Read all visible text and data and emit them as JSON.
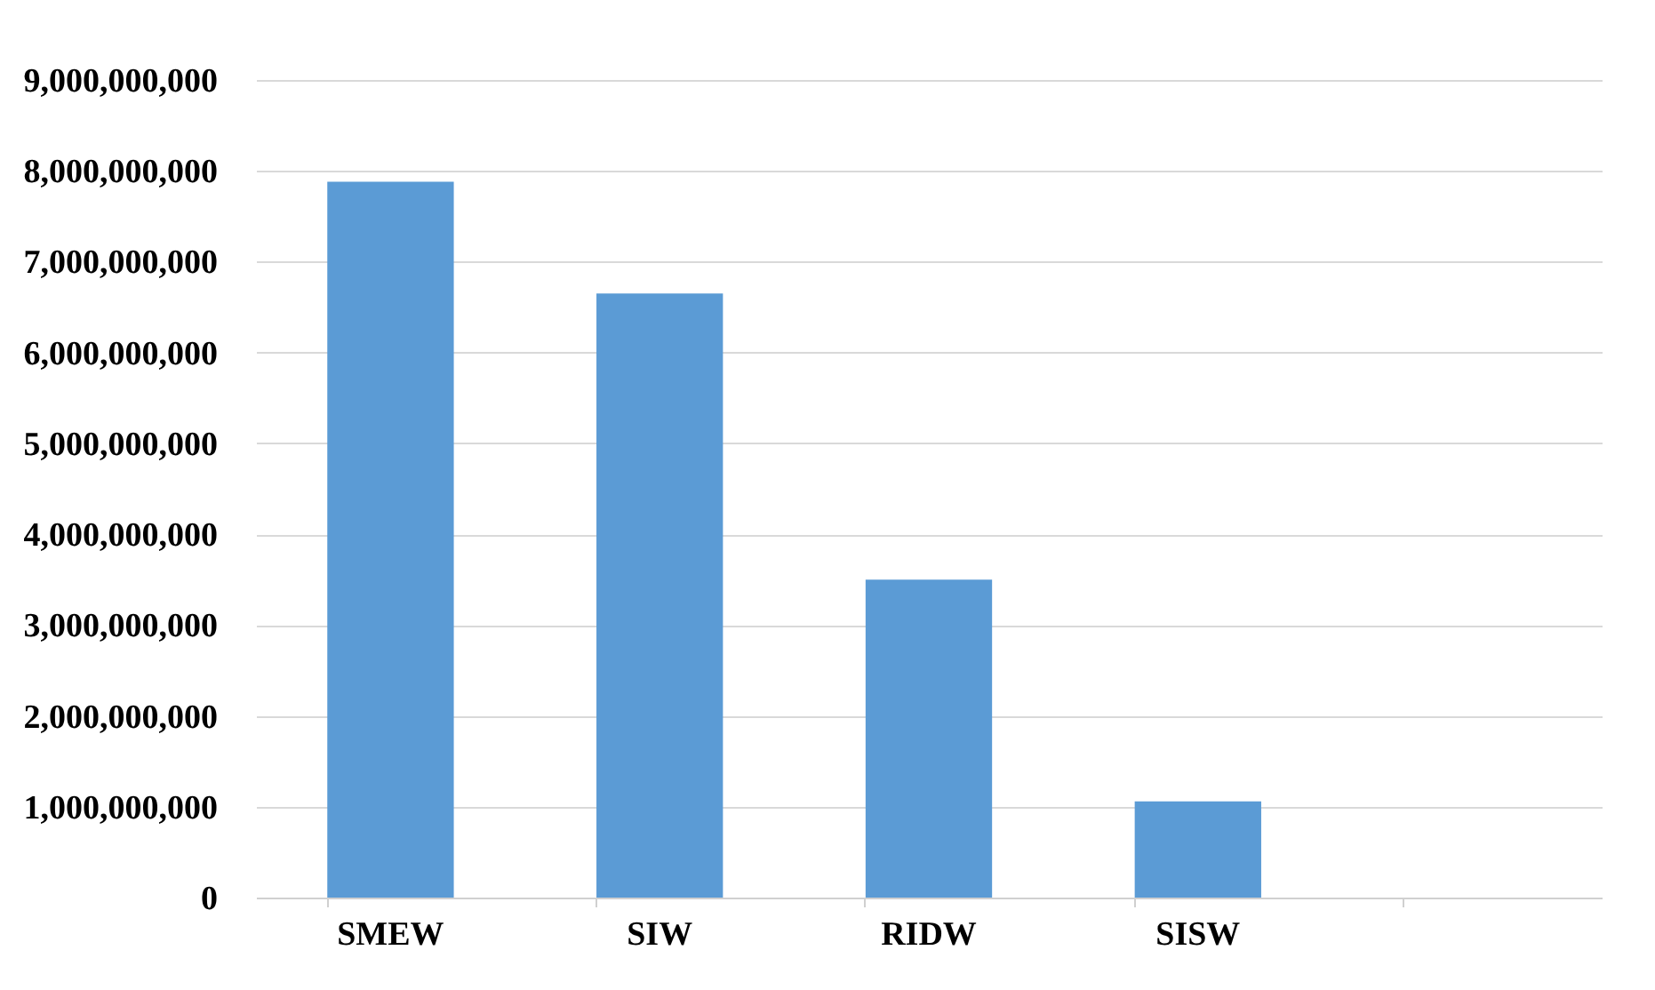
{
  "chart_data": {
    "type": "bar",
    "categories": [
      "SMEW",
      "SIW",
      "RIDW",
      "SISW",
      null
    ],
    "values": [
      7880000000,
      6650000000,
      3500000000,
      1060000000,
      null
    ],
    "color": "#5b9bd5",
    "ylim": [
      0,
      9000000000
    ],
    "yticks": [
      0,
      {
        "value": 1000000000,
        "label": "1,000,000,000"
      },
      {
        "value": 2000000000,
        "label": "2,000,000,000"
      },
      {
        "value": 3000000000,
        "label": "3,000,000,000"
      },
      {
        "value": 4000000000,
        "label": "4,000,000,000"
      },
      {
        "value": 5000000000,
        "label": "5,000,000,000"
      },
      {
        "value": 6000000000,
        "label": "6,000,000,000"
      },
      {
        "value": 7000000000,
        "label": "7,000,000,000"
      },
      {
        "value": 8000000000,
        "label": "8,000,000,000"
      },
      {
        "value": 9000000000,
        "label": "9,000,000,000"
      }
    ],
    "grid": "y"
  }
}
